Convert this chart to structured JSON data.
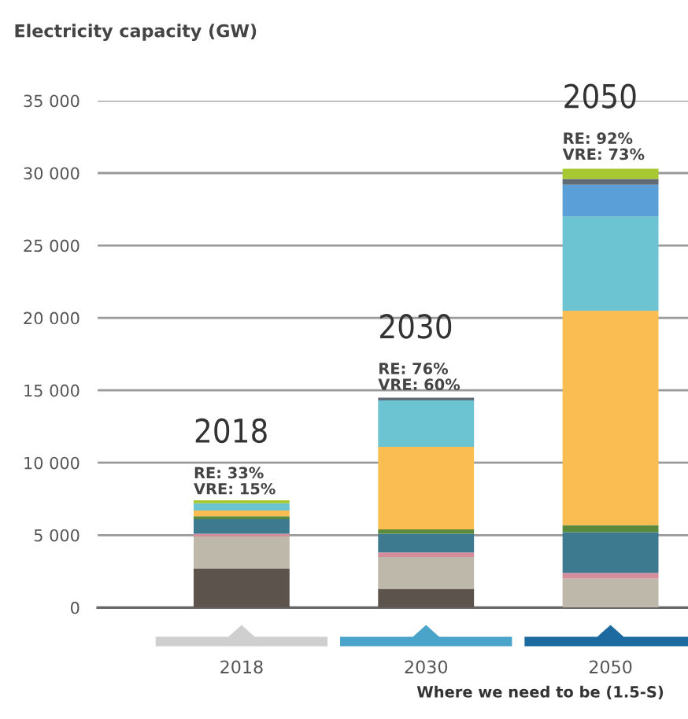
{
  "chart_data": {
    "type": "bar",
    "stacked": true,
    "title": "Electricity capacity (GW)",
    "categories": [
      "2018",
      "2030",
      "2050"
    ],
    "series": [
      {
        "color": "#5b534c",
        "values": [
          2700,
          1300,
          0
        ]
      },
      {
        "color": "#bdb8aa",
        "values": [
          2200,
          2200,
          2000
        ]
      },
      {
        "color": "#d58c9b",
        "values": [
          200,
          300,
          400
        ]
      },
      {
        "color": "#3d7a8f",
        "values": [
          1000,
          1300,
          2800
        ]
      },
      {
        "color": "#5b8a3c",
        "values": [
          200,
          300,
          500
        ]
      },
      {
        "color": "#f9bd52",
        "values": [
          400,
          5700,
          14800
        ]
      },
      {
        "color": "#6cc3d1",
        "values": [
          500,
          3200,
          6500
        ]
      },
      {
        "color": "#5a9fd8",
        "values": [
          0,
          0,
          2200
        ]
      },
      {
        "color": "#5f6b75",
        "values": [
          0,
          200,
          400
        ]
      },
      {
        "color": "#a8c832",
        "values": [
          200,
          0,
          700
        ]
      }
    ],
    "ylim": [
      0,
      35000
    ],
    "yticks": [
      0,
      {
        "value": 5000,
        "label": "5 000"
      },
      {
        "value": 10000,
        "label": "10 000"
      },
      {
        "value": 15000,
        "label": "15 000"
      },
      {
        "value": 20000,
        "label": "20 000"
      },
      {
        "value": 25000,
        "label": "25 000"
      },
      {
        "value": 30000,
        "label": "30 000"
      },
      {
        "value": 35000,
        "label": "35 000"
      }
    ],
    "grid": "y",
    "annotations": [
      {
        "text": "2018\nRE: 33%\nVRE: 15%",
        "x": "2018",
        "y": 7300
      },
      {
        "text": "2030\nRE: 76%\nVRE: 60%",
        "x": "2030",
        "y": 14500
      },
      {
        "text": "2050\nRE: 92%\nVRE: 73%",
        "x": "2050",
        "y": 30400
      },
      "Where we need to be (1.5-S)"
    ]
  }
}
